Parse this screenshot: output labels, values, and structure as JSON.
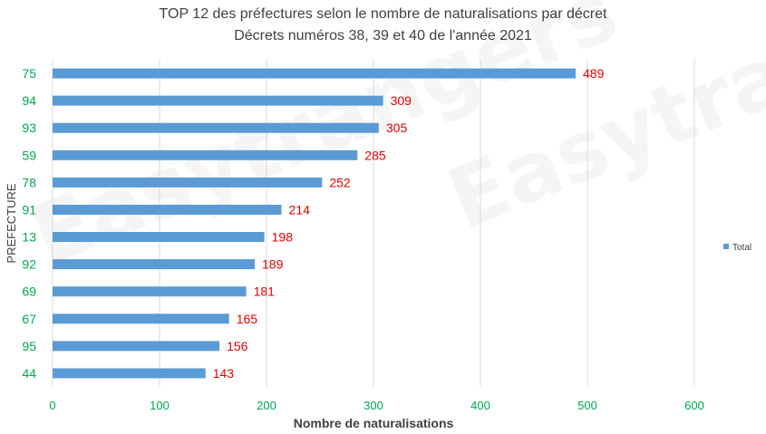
{
  "chart_data": {
    "type": "bar",
    "orientation": "horizontal",
    "title": "TOP 12 des préfectures selon le nombre de naturalisations par décret",
    "subtitle": "Décrets numéros 38, 39 et 40 de l'année 2021",
    "xlabel": "Nombre de naturalisations",
    "ylabel": "PREFECTURE",
    "categories": [
      "75",
      "94",
      "93",
      "59",
      "78",
      "91",
      "13",
      "92",
      "69",
      "67",
      "95",
      "44"
    ],
    "series": [
      {
        "name": "Total",
        "values": [
          489,
          309,
          305,
          285,
          252,
          214,
          198,
          189,
          181,
          165,
          156,
          143
        ]
      }
    ],
    "xlim": [
      0,
      600
    ],
    "xticks": [
      0,
      100,
      200,
      300,
      400,
      500,
      600
    ],
    "grid": true,
    "legend": "right",
    "colors": {
      "bar": "#5b9bd5",
      "data_label": "#e00000",
      "tick_label": "#00a650",
      "grid": "#d9d9d9"
    }
  },
  "watermark": "Easytrangers"
}
